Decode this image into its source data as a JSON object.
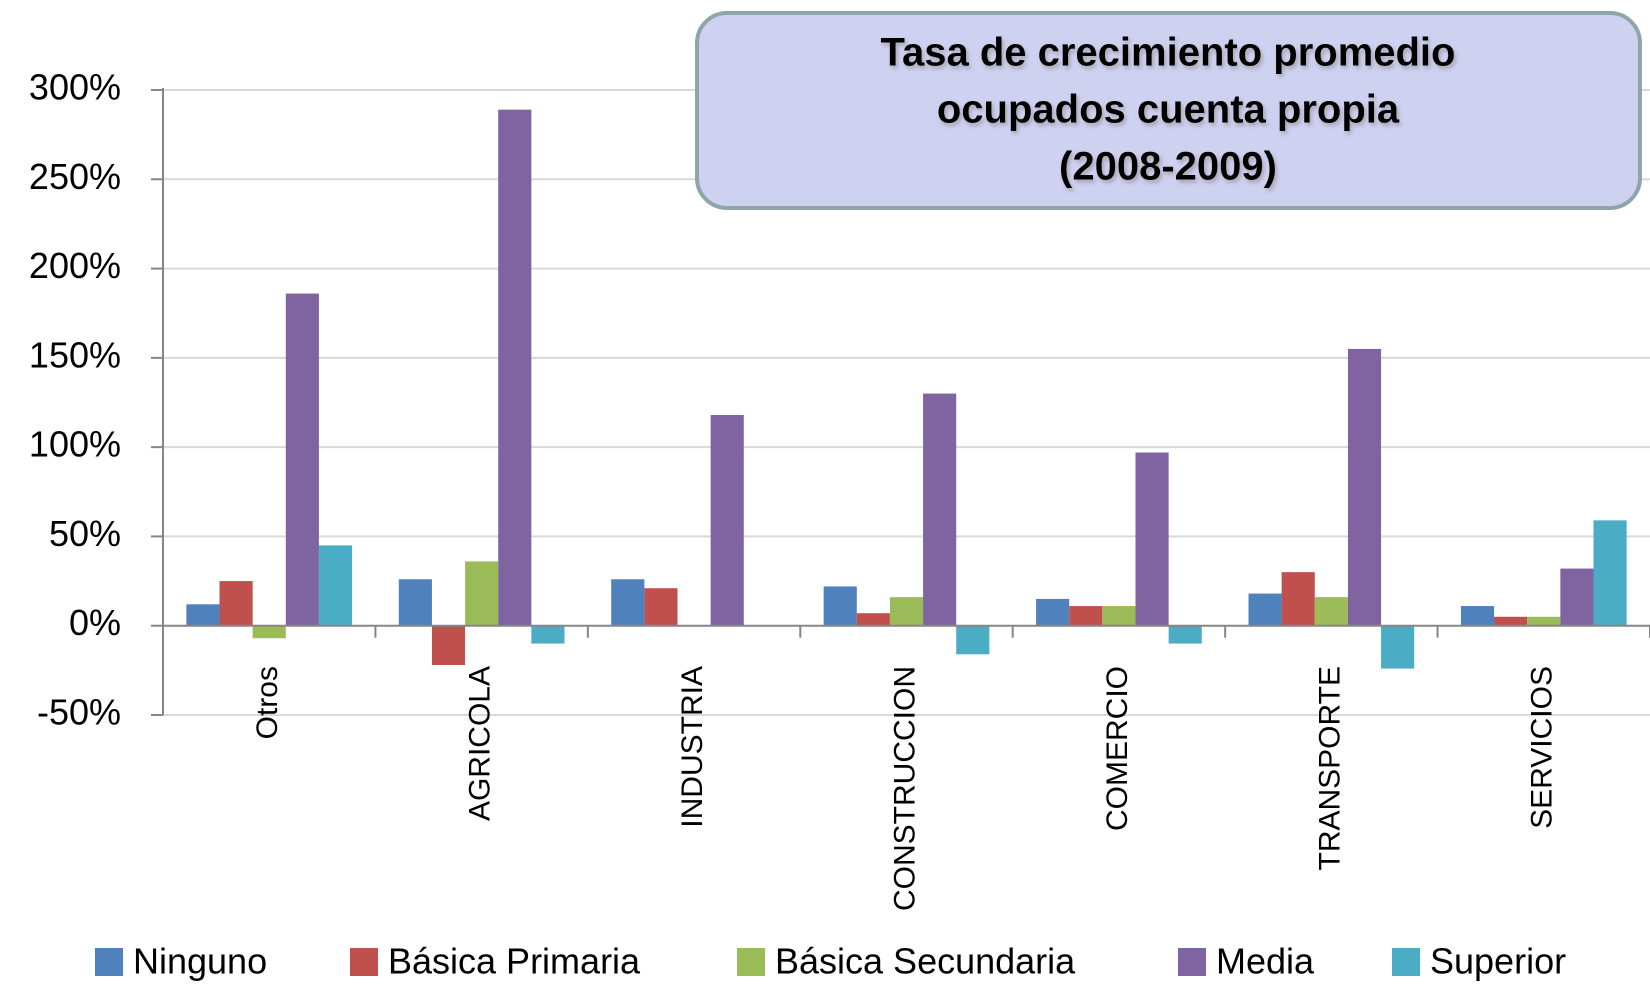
{
  "chart_data": {
    "type": "bar",
    "title": [
      "Tasa de crecimiento promedio",
      "ocupados cuenta propia",
      "(2008-2009)"
    ],
    "categories": [
      "Otros",
      "AGRICOLA",
      "INDUSTRIA",
      "CONSTRUCCION",
      "COMERCIO",
      "TRANSPORTE",
      "SERVICIOS"
    ],
    "series": [
      {
        "name": "Ninguno",
        "color": "#4f81bd",
        "values": [
          12,
          26,
          26,
          22,
          15,
          18,
          11
        ]
      },
      {
        "name": "Básica Primaria",
        "color": "#c0504d",
        "values": [
          25,
          -22,
          21,
          7,
          11,
          30,
          5
        ]
      },
      {
        "name": "Básica Secundaria",
        "color": "#9bbb59",
        "values": [
          -7,
          36,
          null,
          16,
          11,
          16,
          5
        ]
      },
      {
        "name": "Media",
        "color": "#8064a2",
        "values": [
          186,
          289,
          118,
          130,
          97,
          155,
          32
        ]
      },
      {
        "name": "Superior",
        "color": "#4bacc6",
        "values": [
          45,
          -10,
          null,
          -16,
          -10,
          -24,
          59
        ]
      }
    ],
    "ylim": [
      -50,
      300
    ],
    "yticks": [
      {
        "value": -50,
        "label": "-50%"
      },
      {
        "value": 0,
        "label": "0%"
      },
      {
        "value": 50,
        "label": "50%"
      },
      {
        "value": 100,
        "label": "100%"
      },
      {
        "value": 150,
        "label": "150%"
      },
      {
        "value": 200,
        "label": "200%"
      },
      {
        "value": 250,
        "label": "250%"
      },
      {
        "value": 300,
        "label": "300%"
      }
    ],
    "grid": true,
    "legend": "bottom"
  }
}
